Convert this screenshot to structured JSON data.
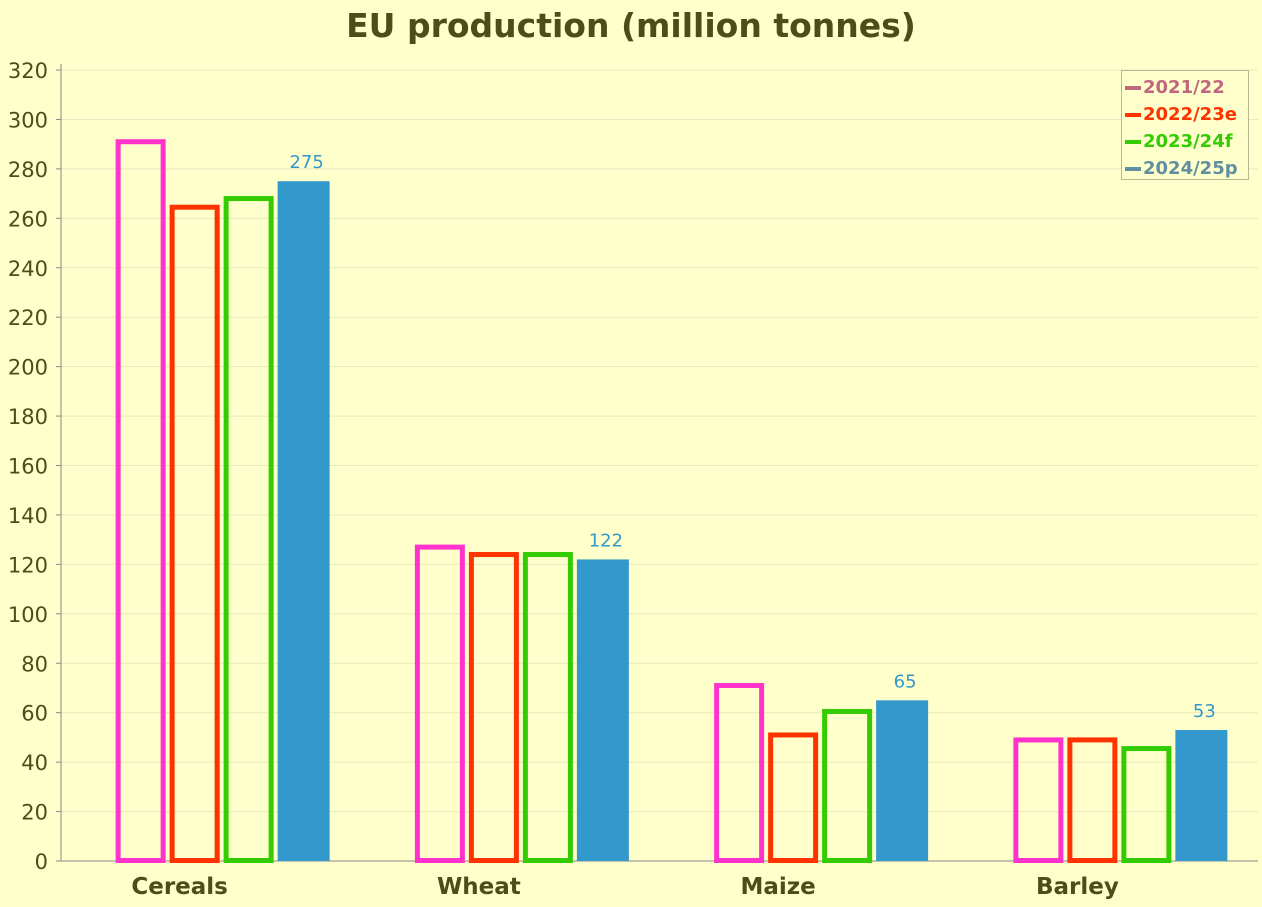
{
  "chart_data": {
    "type": "bar",
    "title": "EU production (million tonnes)",
    "xlabel": "",
    "ylabel": "",
    "categories": [
      "Cereals",
      "Wheat",
      "Maize",
      "Barley"
    ],
    "ylim": [
      0,
      320
    ],
    "yticks": [
      0,
      20,
      40,
      60,
      80,
      100,
      120,
      140,
      160,
      180,
      200,
      220,
      240,
      260,
      280,
      300,
      320
    ],
    "grid": true,
    "legend_position": "top-right",
    "series": [
      {
        "name": "2021/22",
        "values": [
          292,
          128,
          72,
          50
        ],
        "color": "#FF33CC",
        "legend_color": "#C0677F",
        "style": "outline"
      },
      {
        "name": "2022/23e",
        "values": [
          265.5,
          125,
          52,
          50
        ],
        "color": "#FF3300",
        "legend_color": "#FF3300",
        "style": "outline"
      },
      {
        "name": "2023/24f",
        "values": [
          269,
          125,
          61.5,
          46.5
        ],
        "color": "#33CC00",
        "legend_color": "#33CC00",
        "style": "outline"
      },
      {
        "name": "2024/25p",
        "values": [
          275,
          122,
          65,
          53
        ],
        "color": "#3399CC",
        "legend_color": "#5F8FA0",
        "style": "filled",
        "data_labels": [
          "275",
          "122",
          "65",
          "53"
        ]
      }
    ],
    "colors": {
      "background": "#FFFFCC",
      "grid": "#E8E8C0",
      "axis": "#888888",
      "text": "#4D4D1A",
      "data_label": "#3399CC"
    }
  }
}
